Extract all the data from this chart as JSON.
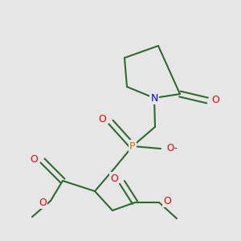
{
  "bg_color": "#e6e6e6",
  "bond_color": "#2d6b2d",
  "N_color": "#0000ee",
  "O_color": "#ee0000",
  "P_color": "#bb7700",
  "bond_lw": 1.5,
  "figsize": [
    3.0,
    3.0
  ],
  "dpi": 100,
  "xlim": [
    0,
    300
  ],
  "ylim": [
    0,
    300
  ]
}
